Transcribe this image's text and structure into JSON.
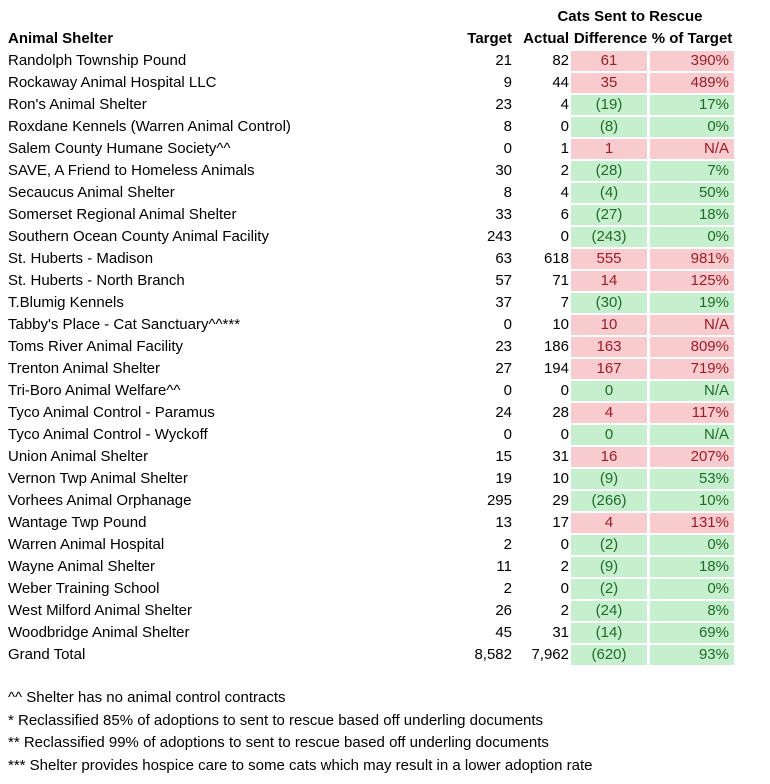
{
  "group_header": "Cats Sent to Rescue",
  "columns": {
    "shelter": "Animal Shelter",
    "target": "Target",
    "actual": "Actual",
    "difference": "Difference",
    "pct": "% of Target"
  },
  "colors": {
    "over_target_fill": "#f8cbcf",
    "over_target_text": "#9c1c27",
    "under_target_fill": "#c6efce",
    "under_target_text": "#1e6b28"
  },
  "rows": [
    {
      "name": "Randolph Township Pound",
      "target": "21",
      "actual": "82",
      "difference": "61",
      "pct": "390%",
      "status": "pos"
    },
    {
      "name": "Rockaway Animal Hospital LLC",
      "target": "9",
      "actual": "44",
      "difference": "35",
      "pct": "489%",
      "status": "pos"
    },
    {
      "name": "Ron's Animal Shelter",
      "target": "23",
      "actual": "4",
      "difference": "(19)",
      "pct": "17%",
      "status": "neg"
    },
    {
      "name": "Roxdane Kennels (Warren Animal Control)",
      "target": "8",
      "actual": "0",
      "difference": "(8)",
      "pct": "0%",
      "status": "neg"
    },
    {
      "name": "Salem County Humane Society^^",
      "target": "0",
      "actual": "1",
      "difference": "1",
      "pct": "N/A",
      "status": "pos"
    },
    {
      "name": "SAVE, A Friend to Homeless Animals",
      "target": "30",
      "actual": "2",
      "difference": "(28)",
      "pct": "7%",
      "status": "neg"
    },
    {
      "name": "Secaucus Animal Shelter",
      "target": "8",
      "actual": "4",
      "difference": "(4)",
      "pct": "50%",
      "status": "neg"
    },
    {
      "name": "Somerset Regional Animal Shelter",
      "target": "33",
      "actual": "6",
      "difference": "(27)",
      "pct": "18%",
      "status": "neg"
    },
    {
      "name": "Southern Ocean County Animal Facility",
      "target": "243",
      "actual": "0",
      "difference": "(243)",
      "pct": "0%",
      "status": "neg"
    },
    {
      "name": "St. Huberts - Madison",
      "target": "63",
      "actual": "618",
      "difference": "555",
      "pct": "981%",
      "status": "pos"
    },
    {
      "name": "St. Huberts - North Branch",
      "target": "57",
      "actual": "71",
      "difference": "14",
      "pct": "125%",
      "status": "pos"
    },
    {
      "name": "T.Blumig Kennels",
      "target": "37",
      "actual": "7",
      "difference": "(30)",
      "pct": "19%",
      "status": "neg"
    },
    {
      "name": "Tabby's Place - Cat Sanctuary^^***",
      "target": "0",
      "actual": "10",
      "difference": "10",
      "pct": "N/A",
      "status": "pos"
    },
    {
      "name": "Toms River Animal Facility",
      "target": "23",
      "actual": "186",
      "difference": "163",
      "pct": "809%",
      "status": "pos"
    },
    {
      "name": "Trenton Animal Shelter",
      "target": "27",
      "actual": "194",
      "difference": "167",
      "pct": "719%",
      "status": "pos"
    },
    {
      "name": "Tri-Boro Animal Welfare^^",
      "target": "0",
      "actual": "0",
      "difference": "0",
      "pct": "N/A",
      "status": "neg"
    },
    {
      "name": "Tyco Animal Control - Paramus",
      "target": "24",
      "actual": "28",
      "difference": "4",
      "pct": "117%",
      "status": "pos"
    },
    {
      "name": "Tyco Animal Control - Wyckoff",
      "target": "0",
      "actual": "0",
      "difference": "0",
      "pct": "N/A",
      "status": "neg"
    },
    {
      "name": "Union Animal Shelter",
      "target": "15",
      "actual": "31",
      "difference": "16",
      "pct": "207%",
      "status": "pos"
    },
    {
      "name": "Vernon Twp Animal Shelter",
      "target": "19",
      "actual": "10",
      "difference": "(9)",
      "pct": "53%",
      "status": "neg"
    },
    {
      "name": "Vorhees Animal Orphanage",
      "target": "295",
      "actual": "29",
      "difference": "(266)",
      "pct": "10%",
      "status": "neg"
    },
    {
      "name": "Wantage Twp Pound",
      "target": "13",
      "actual": "17",
      "difference": "4",
      "pct": "131%",
      "status": "pos"
    },
    {
      "name": "Warren Animal Hospital",
      "target": "2",
      "actual": "0",
      "difference": "(2)",
      "pct": "0%",
      "status": "neg"
    },
    {
      "name": "Wayne Animal Shelter",
      "target": "11",
      "actual": "2",
      "difference": "(9)",
      "pct": "18%",
      "status": "neg"
    },
    {
      "name": "Weber Training School",
      "target": "2",
      "actual": "0",
      "difference": "(2)",
      "pct": "0%",
      "status": "neg"
    },
    {
      "name": "West Milford Animal Shelter",
      "target": "26",
      "actual": "2",
      "difference": "(24)",
      "pct": "8%",
      "status": "neg"
    },
    {
      "name": "Woodbridge Animal Shelter",
      "target": "45",
      "actual": "31",
      "difference": "(14)",
      "pct": "69%",
      "status": "neg"
    },
    {
      "name": "Grand Total",
      "target": "8,582",
      "actual": "7,962",
      "difference": "(620)",
      "pct": "93%",
      "status": "neg"
    }
  ],
  "notes": [
    "^^ Shelter has no animal control contracts",
    "* Reclassified 85% of adoptions to sent to rescue based off underling documents",
    "** Reclassified 99% of adoptions to sent to rescue based off underling documents",
    "*** Shelter provides hospice care to some cats which may result in a lower adoption rate"
  ]
}
